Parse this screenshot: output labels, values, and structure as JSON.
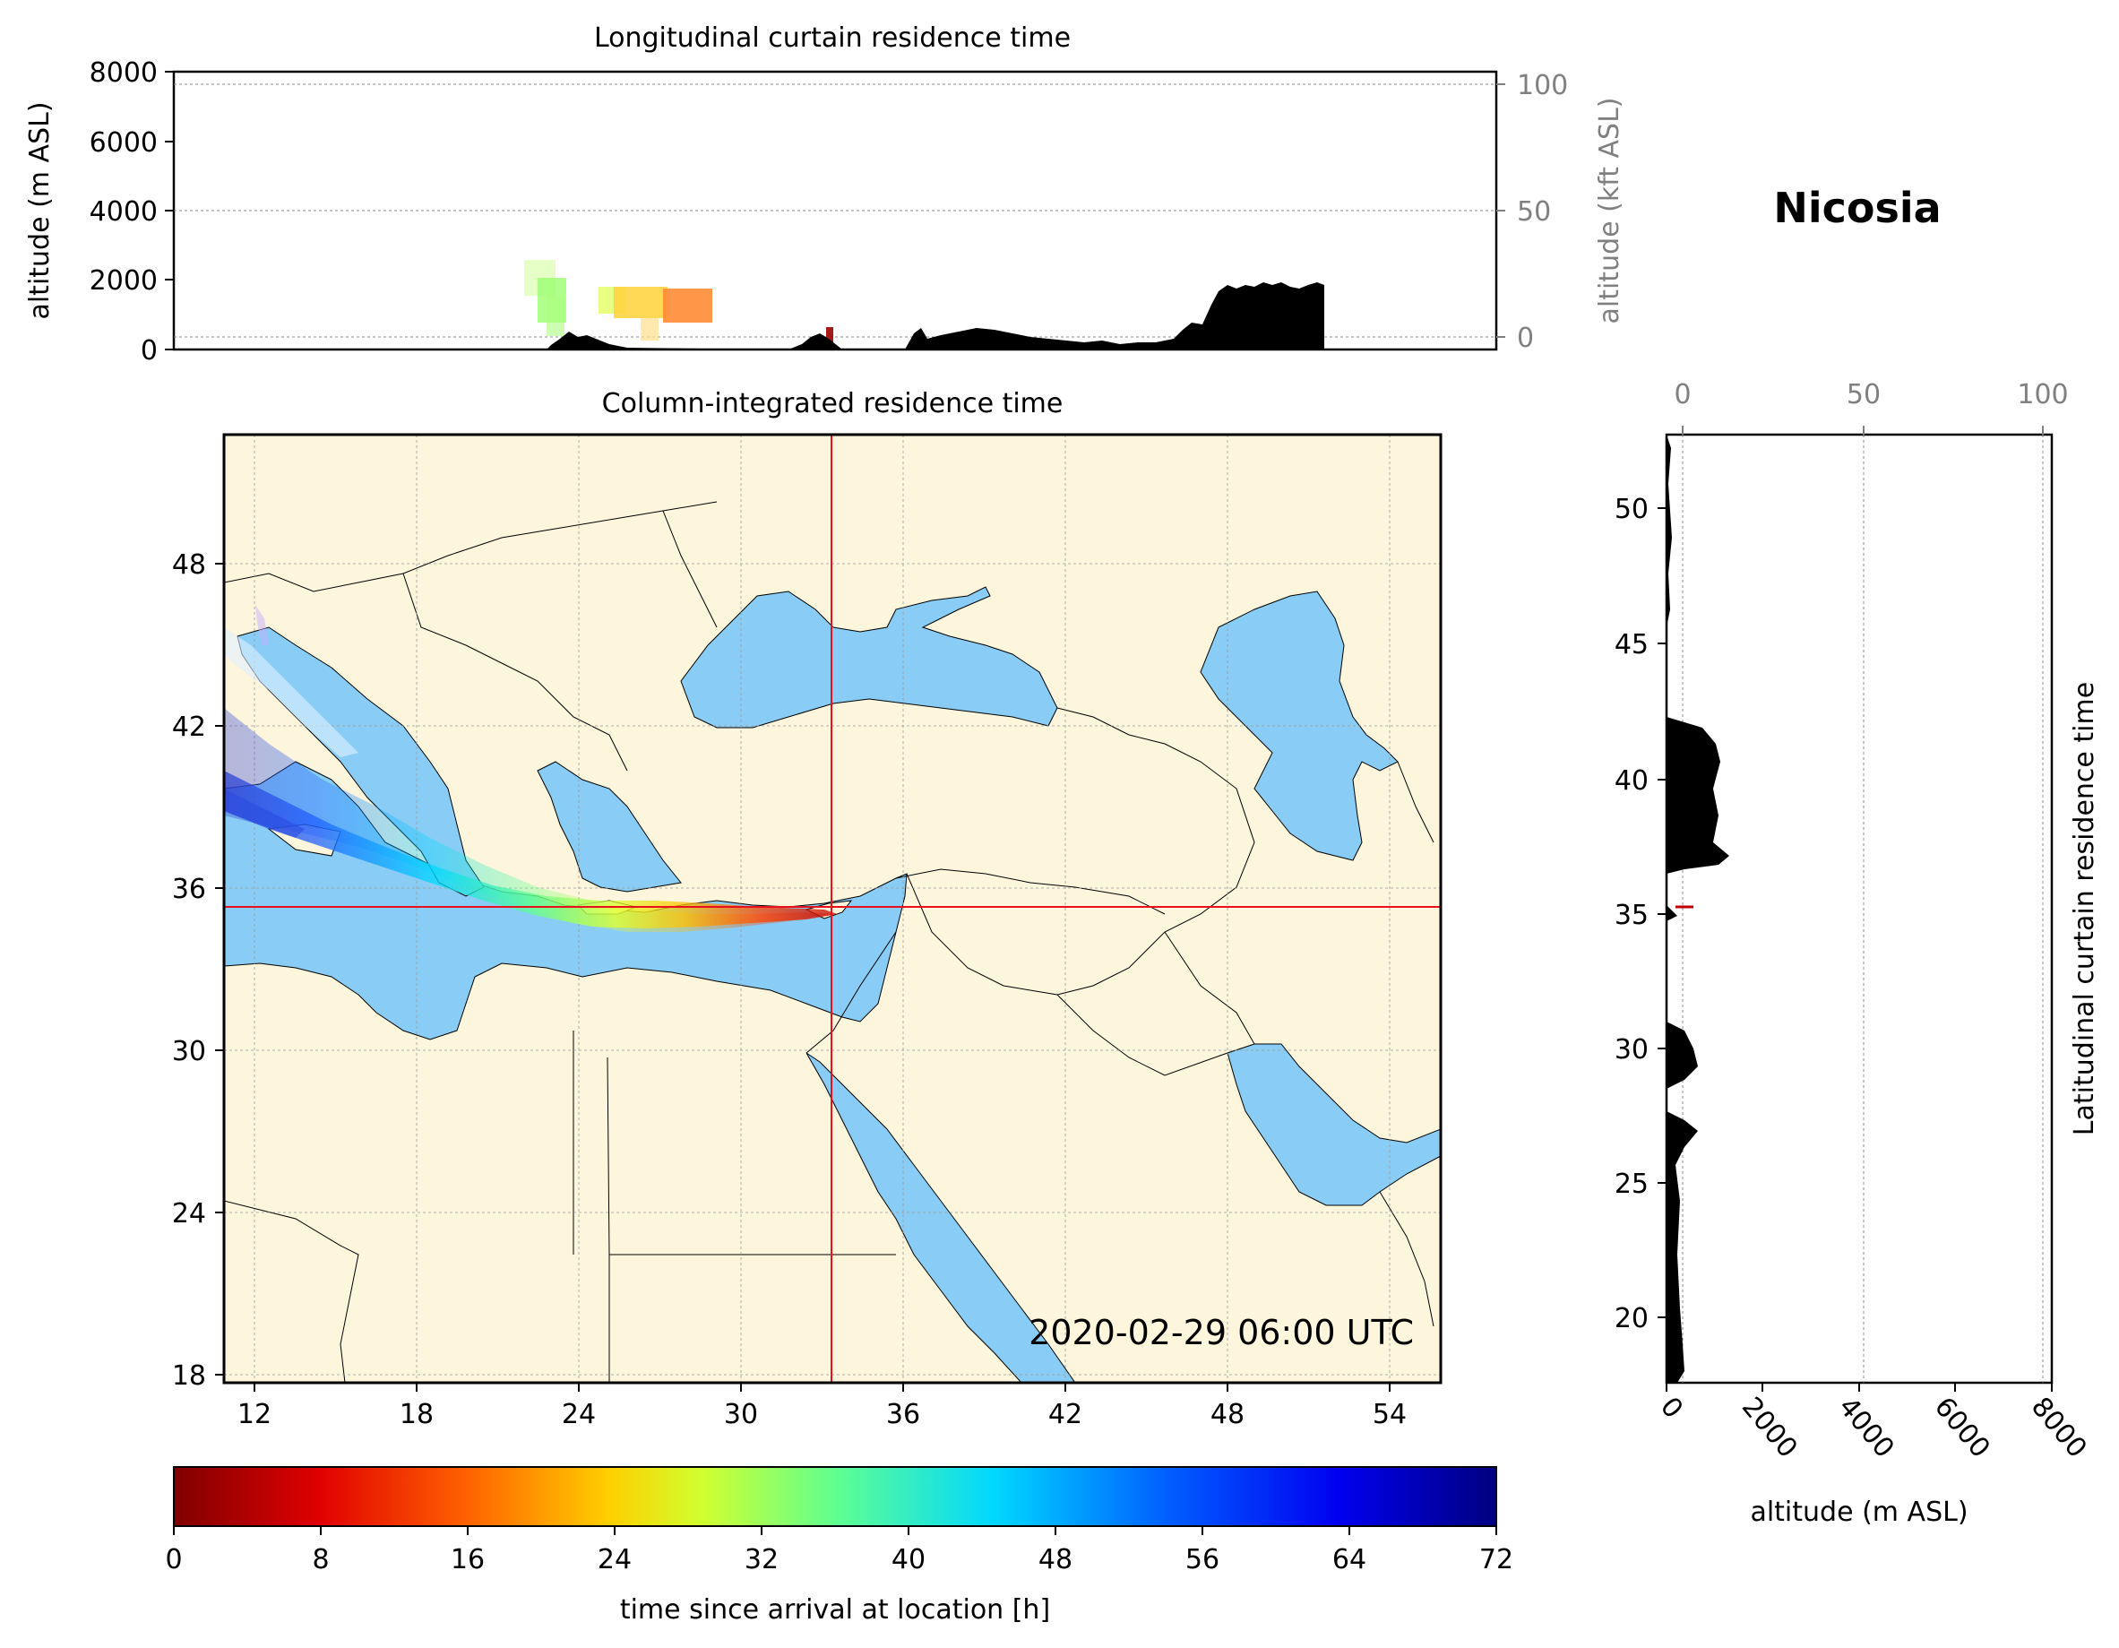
{
  "location_name": "Nicosia",
  "timestamp": "2020-02-29 06:00 UTC",
  "top_panel": {
    "title": "Longitudinal curtain residence time",
    "ylabel_left": "altitude (m ASL)",
    "ylabel_right": "altitude (kft ASL)",
    "yticks_m": [
      "0",
      "2000",
      "4000",
      "6000",
      "8000"
    ],
    "yticks_kft": [
      "0",
      "50",
      "100"
    ]
  },
  "map_panel": {
    "title": "Column-integrated residence time",
    "lon_ticks": [
      "12",
      "18",
      "24",
      "30",
      "36",
      "42",
      "48",
      "54"
    ],
    "lat_ticks": [
      "18",
      "24",
      "30",
      "36",
      "42",
      "48"
    ],
    "location_lon": 33.4,
    "location_lat": 35.2,
    "colors": {
      "land": "#fdf5dc",
      "water": "#89cdf6",
      "crosshair": "#e8101a"
    }
  },
  "right_panel": {
    "ylabel_right": "Latitudinal curtain residence time",
    "xlabel": "altitude (m ASL)",
    "lat_ticks": [
      "20",
      "25",
      "30",
      "35",
      "40",
      "45",
      "50"
    ],
    "xticks_m": [
      "0",
      "2000",
      "4000",
      "6000",
      "8000"
    ],
    "xticks_kft": [
      "0",
      "50",
      "100"
    ]
  },
  "colorbar": {
    "label": "time since arrival at location [h]",
    "ticks": [
      "0",
      "8",
      "16",
      "24",
      "32",
      "40",
      "48",
      "56",
      "64",
      "72"
    ],
    "min": 0,
    "max": 72,
    "colormap": "jet_r"
  },
  "chart_data": {
    "type": "heatmap",
    "title": "Column-integrated residence time",
    "xlim": [
      11,
      56
    ],
    "ylim": [
      18,
      53
    ],
    "plume_track": [
      {
        "lon": 33.4,
        "lat": 35.2,
        "hours": 0
      },
      {
        "lon": 30.0,
        "lat": 35.3,
        "hours": 10
      },
      {
        "lon": 27.0,
        "lat": 35.6,
        "hours": 20
      },
      {
        "lon": 24.0,
        "lat": 36.3,
        "hours": 28
      },
      {
        "lon": 20.0,
        "lat": 38.5,
        "hours": 36
      },
      {
        "lon": 16.0,
        "lat": 40.5,
        "hours": 44
      },
      {
        "lon": 12.0,
        "lat": 42.0,
        "hours": 56
      }
    ]
  }
}
